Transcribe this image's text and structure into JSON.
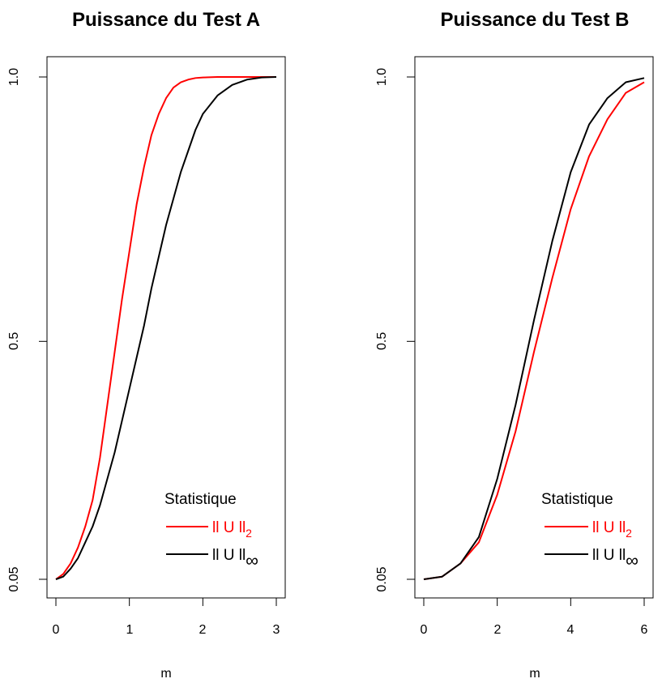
{
  "chart_data": [
    {
      "type": "line",
      "title": "Puissance du Test A",
      "xlabel": "m",
      "ylabel": "",
      "xlim": [
        0,
        3
      ],
      "ylim": [
        0.05,
        1.0
      ],
      "x_ticks": [
        "0",
        "1",
        "2",
        "3"
      ],
      "x_tick_values": [
        0,
        1,
        2,
        3
      ],
      "y_ticks": [
        "0.05",
        "0.5",
        "1.0"
      ],
      "y_tick_values": [
        0.05,
        0.5,
        1.0
      ],
      "legend": {
        "title": "Statistique",
        "position": "bottom-right",
        "entries": [
          {
            "base": "ll U ll",
            "sub": "2",
            "color": "#ff0000"
          },
          {
            "base": "ll U ll",
            "sub": "∞",
            "color": "#000000"
          }
        ]
      },
      "series": [
        {
          "color": "#ff0000",
          "x": [
            0,
            0.1,
            0.2,
            0.3,
            0.4,
            0.5,
            0.6,
            0.7,
            0.8,
            0.9,
            1.0,
            1.1,
            1.2,
            1.3,
            1.4,
            1.5,
            1.6,
            1.7,
            1.8,
            1.9,
            2.0,
            2.2,
            2.4,
            2.6,
            2.8,
            3.0
          ],
          "y": [
            0.05,
            0.06,
            0.08,
            0.11,
            0.15,
            0.2,
            0.28,
            0.38,
            0.48,
            0.58,
            0.67,
            0.76,
            0.83,
            0.89,
            0.93,
            0.96,
            0.98,
            0.99,
            0.995,
            0.998,
            0.999,
            1.0,
            1.0,
            1.0,
            1.0,
            1.0
          ]
        },
        {
          "color": "#000000",
          "x": [
            0,
            0.1,
            0.2,
            0.3,
            0.4,
            0.5,
            0.6,
            0.7,
            0.8,
            0.9,
            1.0,
            1.1,
            1.2,
            1.3,
            1.4,
            1.5,
            1.6,
            1.7,
            1.8,
            1.9,
            2.0,
            2.2,
            2.4,
            2.6,
            2.8,
            3.0
          ],
          "y": [
            0.05,
            0.055,
            0.07,
            0.09,
            0.12,
            0.15,
            0.19,
            0.24,
            0.29,
            0.35,
            0.41,
            0.47,
            0.53,
            0.6,
            0.66,
            0.72,
            0.77,
            0.82,
            0.86,
            0.9,
            0.93,
            0.965,
            0.985,
            0.995,
            0.999,
            1.0
          ]
        }
      ]
    },
    {
      "type": "line",
      "title": "Puissance du Test B",
      "xlabel": "m",
      "ylabel": "",
      "xlim": [
        0,
        6
      ],
      "ylim": [
        0.05,
        1.0
      ],
      "x_ticks": [
        "0",
        "2",
        "4",
        "6"
      ],
      "x_tick_values": [
        0,
        2,
        4,
        6
      ],
      "y_ticks": [
        "0.05",
        "0.5",
        "1.0"
      ],
      "y_tick_values": [
        0.05,
        0.5,
        1.0
      ],
      "legend": {
        "title": "Statistique",
        "position": "bottom-right",
        "entries": [
          {
            "base": "ll U ll",
            "sub": "2",
            "color": "#ff0000"
          },
          {
            "base": "ll U ll",
            "sub": "∞",
            "color": "#000000"
          }
        ]
      },
      "series": [
        {
          "color": "#ff0000",
          "x": [
            0,
            0.5,
            1.0,
            1.5,
            2.0,
            2.5,
            3.0,
            3.5,
            4.0,
            4.5,
            5.0,
            5.5,
            6.0
          ],
          "y": [
            0.05,
            0.055,
            0.08,
            0.12,
            0.21,
            0.33,
            0.48,
            0.62,
            0.75,
            0.85,
            0.92,
            0.97,
            0.99
          ]
        },
        {
          "color": "#000000",
          "x": [
            0,
            0.5,
            1.0,
            1.5,
            2.0,
            2.5,
            3.0,
            3.5,
            4.0,
            4.5,
            5.0,
            5.5,
            6.0
          ],
          "y": [
            0.05,
            0.055,
            0.08,
            0.13,
            0.24,
            0.38,
            0.54,
            0.69,
            0.82,
            0.91,
            0.96,
            0.99,
            0.998
          ]
        }
      ]
    }
  ]
}
